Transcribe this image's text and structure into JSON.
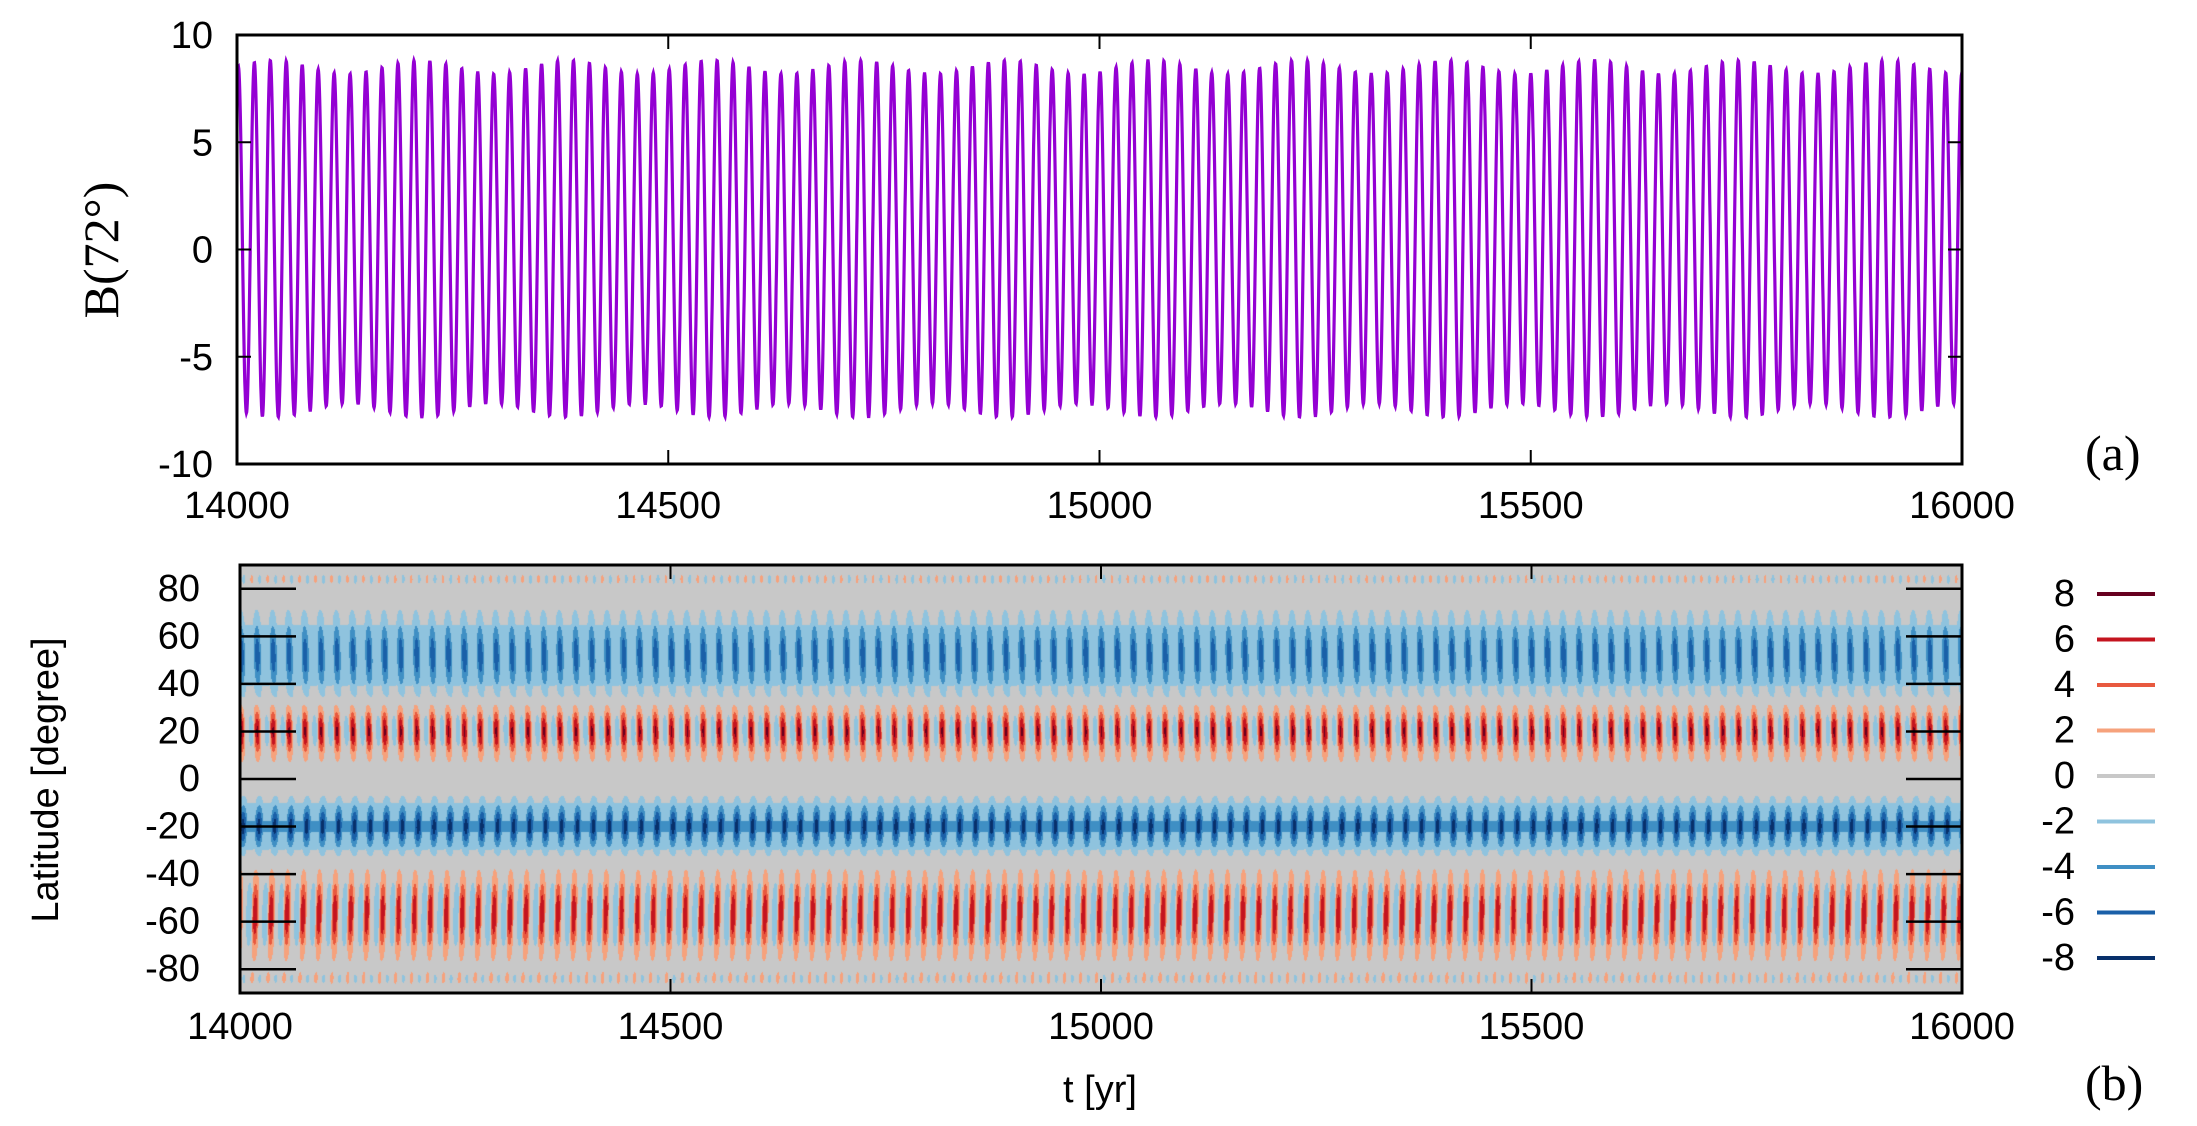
{
  "chart_data": [
    {
      "type": "line",
      "panel_label": "(a)",
      "ylabel": "B(72°)",
      "xlabel": "",
      "xlim": [
        14000,
        16000
      ],
      "ylim": [
        -10,
        10
      ],
      "x_ticks": [
        14000,
        14500,
        15000,
        15500,
        16000
      ],
      "y_ticks": [
        -10,
        -5,
        0,
        5,
        10
      ],
      "x_tick_labels": [
        "14000",
        "14500",
        "15000",
        "15500",
        "16000"
      ],
      "y_tick_labels": [
        "-10",
        "-5",
        "0",
        "5",
        "10"
      ],
      "series": [
        {
          "color": "#9400d3",
          "approx_period_yr": 18.5,
          "approx_max": 8.5,
          "approx_min": -7.5
        }
      ],
      "grid": false
    },
    {
      "type": "heatmap",
      "panel_label": "(b)",
      "xlabel": "t [yr]",
      "ylabel": "Latitude [degree]",
      "xlim": [
        14000,
        16000
      ],
      "ylim": [
        -90,
        90
      ],
      "x_ticks": [
        14000,
        14500,
        15000,
        15500,
        16000
      ],
      "y_ticks": [
        -80,
        -60,
        -40,
        -20,
        0,
        20,
        40,
        60,
        80
      ],
      "x_tick_labels": [
        "14000",
        "14500",
        "15000",
        "15500",
        "16000"
      ],
      "y_tick_labels": [
        "-80",
        "-60",
        "-40",
        "-20",
        "0",
        "20",
        "40",
        "60",
        "80"
      ],
      "contour_levels": [
        8,
        6,
        4,
        2,
        0,
        -2,
        -4,
        -6,
        -8
      ],
      "contour_labels": [
        "8",
        "6",
        "4",
        "2",
        "0",
        "-2",
        "-4",
        "-6",
        "-8"
      ],
      "contour_colors": [
        "#67001f",
        "#c4141f",
        "#e8593f",
        "#f6a27c",
        "#c8c8c8",
        "#8fc3de",
        "#3f8fc4",
        "#1a60a8",
        "#08306b"
      ],
      "legend_position": "right",
      "grid": false
    }
  ]
}
